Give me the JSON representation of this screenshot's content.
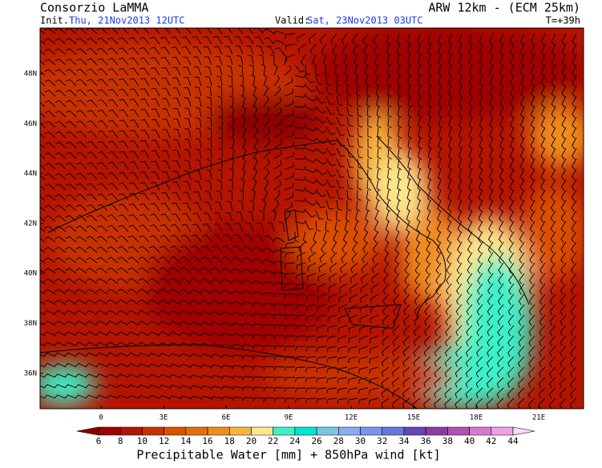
{
  "header": {
    "left_title": "Consorzio LaMMA",
    "right_title": "ARW 12km - (ECM 25km)",
    "init_label": "Init.:",
    "init_value": "Thu, 21Nov2013 12UTC",
    "valid_label": "Valid:",
    "valid_value": "Sat, 23Nov2013 03UTC",
    "lead_time": "T=+39h"
  },
  "map": {
    "lat_labels": [
      "48N",
      "46N",
      "44N",
      "42N",
      "40N",
      "38N",
      "36N"
    ],
    "lon_labels": [
      "0",
      "3E",
      "6E",
      "9E",
      "12E",
      "15E",
      "18E",
      "21E"
    ]
  },
  "colorbar": {
    "ticks": [
      6,
      8,
      10,
      12,
      14,
      16,
      18,
      20,
      22,
      24,
      26,
      28,
      30,
      32,
      34,
      36,
      38,
      40,
      42,
      44
    ],
    "colors": [
      "#8c0000",
      "#a00000",
      "#b41400",
      "#c83200",
      "#dc5000",
      "#e66e0a",
      "#f08c1e",
      "#f5b43c",
      "#ffe68c",
      "#3cf0c8",
      "#00e6d2",
      "#78c8dc",
      "#8caaf0",
      "#7896f0",
      "#6478dc",
      "#6446b4",
      "#8c3ca0",
      "#b450b4",
      "#dc78d2",
      "#f0a0e6",
      "#fadcf5"
    ],
    "caption": "Precipitable Water [mm] + 850hPa wind [kt]"
  }
}
